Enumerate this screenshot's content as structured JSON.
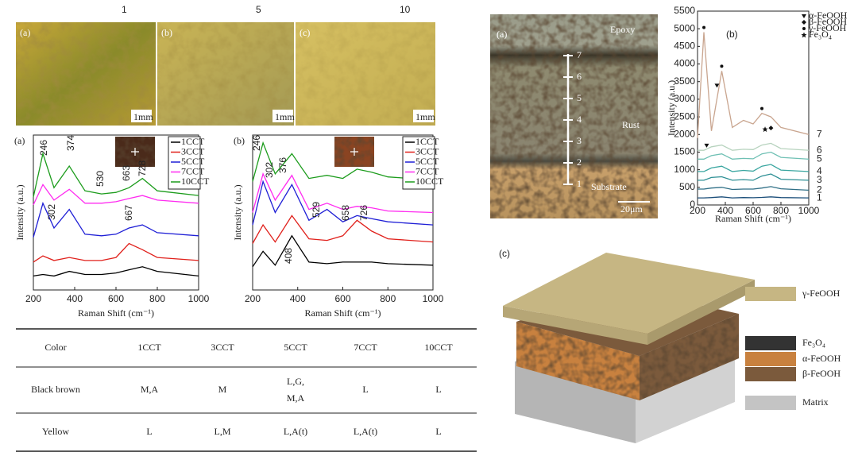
{
  "photos": {
    "column_labels": [
      "1",
      "5",
      "10"
    ],
    "panel_labels": [
      "(a)",
      "(b)",
      "(c)"
    ],
    "scale_bars": [
      "1mm",
      "1mm",
      "1mm"
    ]
  },
  "chart_data": [
    {
      "type": "line",
      "panel_label": "(a)",
      "x_label": "Raman Shift (cm⁻¹)",
      "y_label": "Intensity (a.u.)",
      "x": [
        200,
        246,
        300,
        374,
        450,
        530,
        600,
        663,
        728,
        800,
        1000
      ],
      "xlim": [
        200,
        1000
      ],
      "xticks": [
        200,
        400,
        600,
        800,
        1000
      ],
      "ylim": [
        0,
        100
      ],
      "series": [
        {
          "name": "1CCT",
          "color": "#000000",
          "values": [
            9,
            10,
            9,
            12,
            10,
            10,
            11,
            13,
            15,
            12,
            9
          ]
        },
        {
          "name": "3CCT",
          "color": "#e0201b",
          "values": [
            18,
            22,
            19,
            21,
            19,
            19,
            21,
            30,
            26,
            21,
            19
          ]
        },
        {
          "name": "5CCT",
          "color": "#1f1fd6",
          "values": [
            34,
            56,
            40,
            52,
            36,
            35,
            36,
            40,
            42,
            37,
            35
          ]
        },
        {
          "name": "7CCT",
          "color": "#ff2bf0",
          "values": [
            55,
            68,
            58,
            65,
            56,
            56,
            57,
            59,
            61,
            58,
            56
          ]
        },
        {
          "name": "10CCT",
          "color": "#1c9c1c",
          "values": [
            60,
            88,
            66,
            80,
            64,
            62,
            63,
            66,
            72,
            64,
            61
          ]
        }
      ],
      "peak_labels": [
        "246",
        "374",
        "530",
        "663",
        "728",
        "302",
        "667"
      ]
    },
    {
      "type": "line",
      "panel_label": "(b)",
      "x_label": "Raman Shift (cm⁻¹)",
      "y_label": "Intensity (a.u.)",
      "x": [
        200,
        246,
        300,
        374,
        450,
        530,
        600,
        663,
        728,
        800,
        1000
      ],
      "xlim": [
        200,
        1000
      ],
      "xticks": [
        200,
        400,
        600,
        800,
        1000
      ],
      "ylim": [
        0,
        100
      ],
      "series": [
        {
          "name": "1CCT",
          "color": "#000000",
          "values": [
            15,
            25,
            16,
            35,
            18,
            17,
            18,
            18,
            18,
            17,
            16
          ]
        },
        {
          "name": "3CCT",
          "color": "#e0201b",
          "values": [
            30,
            42,
            31,
            48,
            33,
            32,
            35,
            45,
            38,
            33,
            31
          ]
        },
        {
          "name": "5CCT",
          "color": "#1f1fd6",
          "values": [
            42,
            70,
            50,
            68,
            45,
            52,
            44,
            48,
            46,
            44,
            42
          ]
        },
        {
          "name": "7CCT",
          "color": "#ff2bf0",
          "values": [
            50,
            75,
            58,
            74,
            52,
            56,
            52,
            54,
            53,
            51,
            50
          ]
        },
        {
          "name": "10CCT",
          "color": "#1c9c1c",
          "values": [
            70,
            95,
            75,
            88,
            72,
            74,
            72,
            78,
            76,
            73,
            71
          ]
        }
      ],
      "peak_labels": [
        "246",
        "302",
        "376",
        "529",
        "658",
        "726",
        "408"
      ]
    },
    {
      "type": "line",
      "panel_label": "(b)",
      "x_label": "Raman Shift (cm⁻¹)",
      "y_label": "Intensity (a.u.)",
      "x": [
        200,
        246,
        300,
        374,
        450,
        530,
        600,
        663,
        728,
        800,
        1000
      ],
      "xlim": [
        200,
        1000
      ],
      "xticks": [
        200,
        400,
        600,
        800,
        1000
      ],
      "ylim": [
        0,
        5500
      ],
      "yticks": [
        0,
        500,
        1000,
        1500,
        2000,
        2500,
        3000,
        3500,
        4000,
        4500,
        5000,
        5500
      ],
      "legend": [
        "α-FeOOH",
        "β-FeOOH",
        "γ-FeOOH",
        "Fe₃O₄"
      ],
      "series": [
        {
          "name": "1",
          "color": "#1c4f7a",
          "values": [
            200,
            200,
            210,
            230,
            200,
            210,
            205,
            215,
            230,
            210,
            200
          ]
        },
        {
          "name": "2",
          "color": "#2f6f86",
          "values": [
            450,
            450,
            480,
            500,
            440,
            450,
            450,
            480,
            520,
            460,
            420
          ]
        },
        {
          "name": "3",
          "color": "#2d8f94",
          "values": [
            700,
            700,
            780,
            800,
            700,
            720,
            700,
            820,
            880,
            730,
            700
          ]
        },
        {
          "name": "4",
          "color": "#3aa6a0",
          "values": [
            950,
            950,
            1050,
            1100,
            950,
            980,
            960,
            1100,
            1150,
            990,
            950
          ]
        },
        {
          "name": "5",
          "color": "#6fc0b4",
          "values": [
            1300,
            1300,
            1400,
            1450,
            1300,
            1320,
            1310,
            1450,
            1500,
            1350,
            1300
          ]
        },
        {
          "name": "6",
          "color": "#b7d3be",
          "values": [
            1550,
            1550,
            1650,
            1700,
            1550,
            1580,
            1570,
            1700,
            1750,
            1600,
            1550
          ]
        },
        {
          "name": "7",
          "color": "#c9a58f",
          "values": [
            1900,
            4900,
            2100,
            3800,
            2200,
            2400,
            2300,
            2600,
            2500,
            2200,
            2000
          ]
        }
      ]
    }
  ],
  "cross_section": {
    "panel_label": "(a)",
    "labels": [
      "Epoxy",
      "Rust",
      "Substrate"
    ],
    "scale_bar": "20μm",
    "points": [
      "1",
      "2",
      "3",
      "4",
      "5",
      "6",
      "7"
    ]
  },
  "table": {
    "header": [
      "Color",
      "1CCT",
      "3CCT",
      "5CCT",
      "7CCT",
      "10CCT"
    ],
    "rows": [
      [
        "Black brown",
        "M,A",
        "M",
        "L,G,\nM,A",
        "L",
        "L"
      ],
      [
        "Yellow",
        "L",
        "L,M",
        "L,A(t)",
        "L,A(t)",
        "L"
      ]
    ]
  },
  "diagram": {
    "panel_label": "(c)",
    "legend": [
      {
        "label": "γ-FeOOH",
        "color": "#c6b683"
      },
      {
        "label": "Fe₃O₄",
        "color": "#333333"
      },
      {
        "label": "α-FeOOH",
        "color": "#c8813f"
      },
      {
        "label": "β-FeOOH",
        "color": "#7b5a3c"
      },
      {
        "label": "Matrix",
        "color": "#c4c4c4"
      }
    ]
  }
}
